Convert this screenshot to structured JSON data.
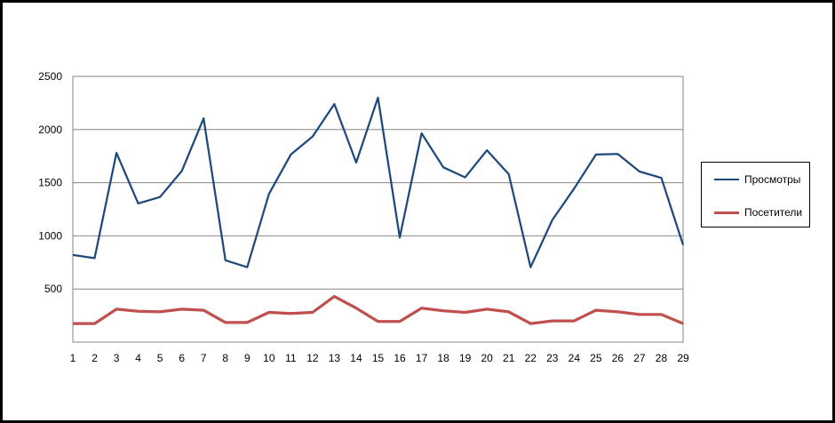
{
  "chart_data": {
    "type": "line",
    "title": "",
    "xlabel": "",
    "ylabel": "",
    "ylim": [
      0,
      2500
    ],
    "yticks": [
      500,
      1000,
      1500,
      2000,
      2500
    ],
    "grid": true,
    "legend_position": "right",
    "x": [
      1,
      2,
      3,
      4,
      5,
      6,
      7,
      8,
      9,
      10,
      11,
      12,
      13,
      14,
      15,
      16,
      17,
      18,
      19,
      20,
      21,
      22,
      23,
      24,
      25,
      26,
      27,
      28,
      29
    ],
    "series": [
      {
        "name": "Просмотры",
        "color": "#1f497d",
        "values": [
          820,
          790,
          1780,
          1305,
          1365,
          1610,
          2105,
          770,
          705,
          1395,
          1765,
          1935,
          2240,
          1690,
          2300,
          985,
          1965,
          1645,
          1550,
          1805,
          1580,
          705,
          1150,
          1445,
          1765,
          1770,
          1605,
          1545,
          915
        ]
      },
      {
        "name": "Посетители",
        "color": "#c0504d",
        "values": [
          175,
          175,
          310,
          290,
          285,
          310,
          300,
          185,
          185,
          280,
          270,
          280,
          430,
          320,
          195,
          195,
          320,
          295,
          280,
          310,
          285,
          175,
          200,
          200,
          300,
          285,
          260,
          260,
          175
        ]
      }
    ]
  }
}
